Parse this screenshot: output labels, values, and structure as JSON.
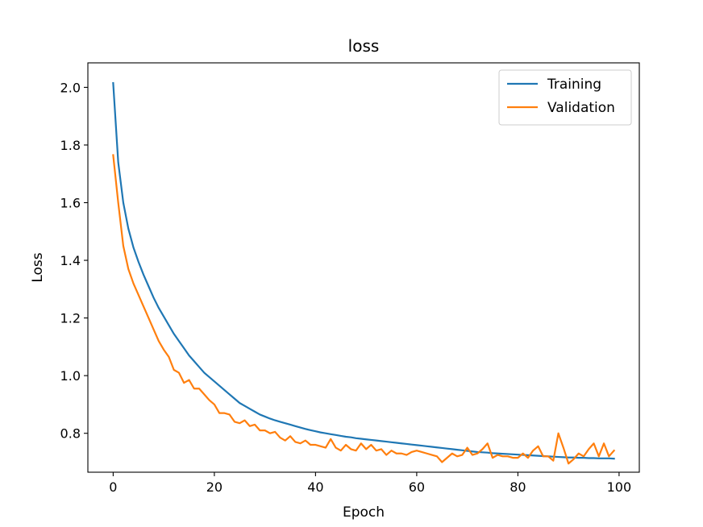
{
  "chart_data": {
    "type": "line",
    "title": "loss",
    "xlabel": "Epoch",
    "ylabel": "Loss",
    "xlim": [
      -5,
      104
    ],
    "ylim": [
      0.665,
      2.085
    ],
    "xticks": [
      0,
      20,
      40,
      60,
      80,
      100
    ],
    "yticks": [
      0.8,
      1.0,
      1.2,
      1.4,
      1.6,
      1.8,
      2.0
    ],
    "xtick_labels": [
      "0",
      "20",
      "40",
      "60",
      "80",
      "100"
    ],
    "ytick_labels": [
      "0.8",
      "1.0",
      "1.2",
      "1.4",
      "1.6",
      "1.8",
      "2.0"
    ],
    "legend_position": "upper right",
    "grid": false,
    "x": [
      0,
      1,
      2,
      3,
      4,
      5,
      6,
      7,
      8,
      9,
      10,
      11,
      12,
      13,
      14,
      15,
      16,
      17,
      18,
      19,
      20,
      21,
      22,
      23,
      24,
      25,
      26,
      27,
      28,
      29,
      30,
      31,
      32,
      33,
      34,
      35,
      36,
      37,
      38,
      39,
      40,
      41,
      42,
      43,
      44,
      45,
      46,
      47,
      48,
      49,
      50,
      51,
      52,
      53,
      54,
      55,
      56,
      57,
      58,
      59,
      60,
      61,
      62,
      63,
      64,
      65,
      66,
      67,
      68,
      69,
      70,
      71,
      72,
      73,
      74,
      75,
      76,
      77,
      78,
      79,
      80,
      81,
      82,
      83,
      84,
      85,
      86,
      87,
      88,
      89,
      90,
      91,
      92,
      93,
      94,
      95,
      96,
      97,
      98,
      99
    ],
    "series": [
      {
        "name": "Training",
        "color": "#1f77b4",
        "values": [
          2.015,
          1.74,
          1.6,
          1.51,
          1.445,
          1.395,
          1.35,
          1.31,
          1.27,
          1.235,
          1.205,
          1.175,
          1.145,
          1.12,
          1.095,
          1.07,
          1.05,
          1.03,
          1.01,
          0.995,
          0.98,
          0.965,
          0.95,
          0.935,
          0.92,
          0.905,
          0.895,
          0.885,
          0.875,
          0.865,
          0.858,
          0.851,
          0.845,
          0.84,
          0.835,
          0.83,
          0.825,
          0.82,
          0.815,
          0.811,
          0.807,
          0.803,
          0.8,
          0.797,
          0.794,
          0.791,
          0.788,
          0.786,
          0.783,
          0.781,
          0.779,
          0.777,
          0.775,
          0.773,
          0.771,
          0.769,
          0.767,
          0.765,
          0.763,
          0.761,
          0.759,
          0.757,
          0.755,
          0.753,
          0.751,
          0.749,
          0.747,
          0.745,
          0.743,
          0.741,
          0.739,
          0.737,
          0.735,
          0.734,
          0.733,
          0.731,
          0.73,
          0.729,
          0.728,
          0.727,
          0.726,
          0.725,
          0.724,
          0.723,
          0.722,
          0.721,
          0.72,
          0.719,
          0.718,
          0.717,
          0.716,
          0.716,
          0.715,
          0.715,
          0.714,
          0.714,
          0.713,
          0.713,
          0.713,
          0.712
        ]
      },
      {
        "name": "Validation",
        "color": "#ff7f0e",
        "values": [
          1.765,
          1.6,
          1.45,
          1.37,
          1.32,
          1.28,
          1.24,
          1.2,
          1.16,
          1.12,
          1.09,
          1.065,
          1.02,
          1.01,
          0.975,
          0.985,
          0.955,
          0.955,
          0.935,
          0.915,
          0.9,
          0.87,
          0.87,
          0.865,
          0.84,
          0.835,
          0.845,
          0.825,
          0.83,
          0.81,
          0.81,
          0.8,
          0.805,
          0.785,
          0.775,
          0.79,
          0.77,
          0.765,
          0.775,
          0.76,
          0.76,
          0.755,
          0.75,
          0.78,
          0.75,
          0.74,
          0.76,
          0.745,
          0.74,
          0.765,
          0.745,
          0.76,
          0.74,
          0.745,
          0.725,
          0.74,
          0.73,
          0.73,
          0.725,
          0.735,
          0.74,
          0.735,
          0.73,
          0.725,
          0.72,
          0.7,
          0.715,
          0.73,
          0.72,
          0.725,
          0.75,
          0.725,
          0.73,
          0.745,
          0.765,
          0.715,
          0.725,
          0.72,
          0.72,
          0.715,
          0.715,
          0.73,
          0.715,
          0.74,
          0.755,
          0.72,
          0.72,
          0.705,
          0.8,
          0.75,
          0.695,
          0.71,
          0.73,
          0.72,
          0.745,
          0.765,
          0.72,
          0.765,
          0.72,
          0.74
        ]
      }
    ]
  }
}
